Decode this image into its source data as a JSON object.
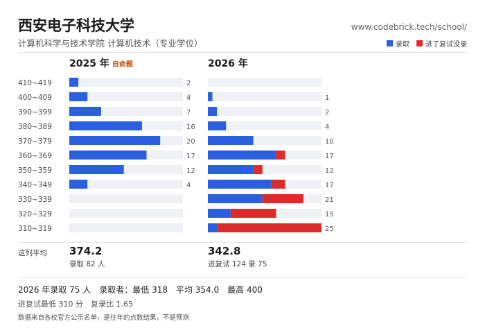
{
  "header": {
    "title": "西安电子科技大学",
    "subtitle": "计算机科学与技术学院 计算机技术（专业学位）",
    "site": "www.codebrick.tech/school/"
  },
  "legend": {
    "admitted": "录取",
    "not_admitted": "进了复试没录"
  },
  "colors": {
    "admitted": "#2a5fe0",
    "not_admitted": "#dc2b2b",
    "track": "#f0f1f4"
  },
  "chart_data": {
    "type": "bar",
    "orientation": "horizontal",
    "categories": [
      "410~419",
      "400~409",
      "390~399",
      "380~389",
      "370~379",
      "360~369",
      "350~359",
      "340~349",
      "330~339",
      "320~329",
      "310~319"
    ],
    "panels": [
      {
        "year": "2025 年",
        "tag": "自命题",
        "max": 25,
        "series": [
          {
            "name": "录取",
            "values": [
              2,
              4,
              7,
              16,
              20,
              17,
              12,
              4,
              0,
              0,
              0
            ]
          }
        ],
        "labels": [
          "2",
          "4",
          "7",
          "16",
          "20",
          "17",
          "12",
          "4",
          "",
          "",
          ""
        ]
      },
      {
        "year": "2026 年",
        "tag": "",
        "max": 25,
        "series": [
          {
            "name": "录取",
            "values": [
              0,
              1,
              2,
              4,
              10,
              15,
              10,
              14,
              12,
              5,
              2
            ]
          },
          {
            "name": "进了复试没录",
            "values": [
              0,
              0,
              0,
              0,
              0,
              2,
              2,
              3,
              9,
              10,
              23
            ]
          }
        ],
        "labels": [
          "",
          "1",
          "2",
          "4",
          "10",
          "17",
          "12",
          "17",
          "21",
          "15",
          "25"
        ]
      }
    ]
  },
  "averages": {
    "row_label": "这列平均",
    "y2025": {
      "value": "374.2",
      "note": "录取 82 人"
    },
    "y2026": {
      "value": "342.8",
      "note": "进复试 124 录 75"
    }
  },
  "summary": {
    "line1": "2026 年录取 75 人　录取者：最低 318　平均 354.0　最高 400",
    "line2": "进复试最低 310 分　复录比 1.65",
    "line3": "数据来自各校官方公示名单，是往年的点数结果，不是预测"
  }
}
